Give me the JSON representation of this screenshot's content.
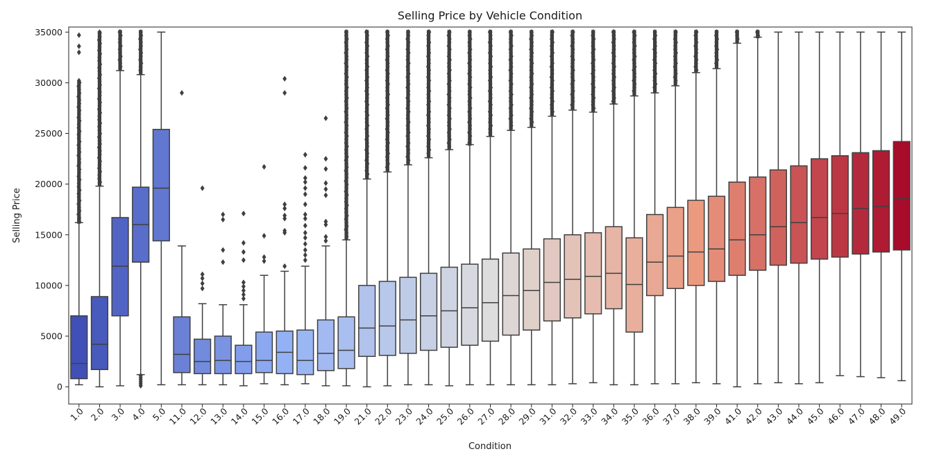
{
  "chart_data": {
    "type": "box",
    "title": "Selling Price by Vehicle Condition",
    "xlabel": "Condition",
    "ylabel": "Selling Price",
    "ylim": [
      -1700,
      35500
    ],
    "yticks": [
      0,
      5000,
      10000,
      15000,
      20000,
      25000,
      30000,
      35000
    ],
    "palette": "coolwarm",
    "grid": false,
    "legend": "none",
    "categories": [
      "1.0",
      "2.0",
      "3.0",
      "4.0",
      "5.0",
      "11.0",
      "12.0",
      "13.0",
      "14.0",
      "15.0",
      "16.0",
      "17.0",
      "18.0",
      "19.0",
      "21.0",
      "22.0",
      "23.0",
      "24.0",
      "25.0",
      "26.0",
      "27.0",
      "28.0",
      "29.0",
      "31.0",
      "32.0",
      "33.0",
      "34.0",
      "35.0",
      "36.0",
      "37.0",
      "38.0",
      "39.0",
      "41.0",
      "42.0",
      "43.0",
      "44.0",
      "45.0",
      "46.0",
      "47.0",
      "48.0",
      "49.0"
    ],
    "boxes": [
      {
        "category": "1.0",
        "whisker_low": 200,
        "q1": 800,
        "median": 2300,
        "q3": 7000,
        "whisker_high": 16200,
        "fliers_high": [
          16500,
          17500,
          19000,
          20500,
          22000,
          23500,
          25000,
          26500,
          28000,
          30200,
          33000,
          33600,
          34700
        ],
        "fliers_low": [],
        "dense_high": [
          16300,
          30000
        ]
      },
      {
        "category": "2.0",
        "whisker_low": 0,
        "q1": 1700,
        "median": 4200,
        "q3": 8900,
        "whisker_high": 19800,
        "fliers_high": [
          35000
        ],
        "fliers_low": [],
        "dense_high": [
          20000,
          34900
        ]
      },
      {
        "category": "3.0",
        "whisker_low": 100,
        "q1": 7000,
        "median": 11900,
        "q3": 16700,
        "whisker_high": 31200,
        "fliers_high": [
          35000
        ],
        "fliers_low": [],
        "dense_high": [
          31400,
          35000
        ]
      },
      {
        "category": "4.0",
        "whisker_low": 1200,
        "q1": 12300,
        "median": 16000,
        "q3": 19700,
        "whisker_high": 30800,
        "fliers_high": [
          35000
        ],
        "fliers_low": [
          100,
          300,
          500,
          700,
          900,
          1100
        ],
        "dense_high": [
          31000,
          35000
        ]
      },
      {
        "category": "5.0",
        "whisker_low": 200,
        "q1": 14400,
        "median": 19600,
        "q3": 25400,
        "whisker_high": 35000,
        "fliers_high": [],
        "fliers_low": [],
        "dense_high": []
      },
      {
        "category": "11.0",
        "whisker_low": 200,
        "q1": 1400,
        "median": 3200,
        "q3": 6900,
        "whisker_high": 13900,
        "fliers_high": [
          29000
        ],
        "fliers_low": [],
        "dense_high": []
      },
      {
        "category": "12.0",
        "whisker_low": 200,
        "q1": 1300,
        "median": 2500,
        "q3": 4700,
        "whisker_high": 8200,
        "fliers_high": [
          9700,
          10200,
          10700,
          11100,
          19600
        ],
        "fliers_low": [],
        "dense_high": []
      },
      {
        "category": "13.0",
        "whisker_low": 200,
        "q1": 1300,
        "median": 2600,
        "q3": 5000,
        "whisker_high": 8100,
        "fliers_high": [
          12300,
          13500,
          16500,
          17000
        ],
        "fliers_low": [],
        "dense_high": []
      },
      {
        "category": "14.0",
        "whisker_low": 100,
        "q1": 1300,
        "median": 2500,
        "q3": 4100,
        "whisker_high": 8100,
        "fliers_high": [
          8700,
          9100,
          9500,
          9900,
          10300,
          12500,
          13300,
          14200,
          17100
        ],
        "fliers_low": [],
        "dense_high": []
      },
      {
        "category": "15.0",
        "whisker_low": 300,
        "q1": 1400,
        "median": 2600,
        "q3": 5400,
        "whisker_high": 11000,
        "fliers_high": [
          12400,
          12800,
          14900,
          21700
        ],
        "fliers_low": [],
        "dense_high": []
      },
      {
        "category": "16.0",
        "whisker_low": 200,
        "q1": 1300,
        "median": 3400,
        "q3": 5500,
        "whisker_high": 11400,
        "fliers_high": [
          11900,
          15200,
          15400,
          16600,
          16900,
          17600,
          18000,
          29000,
          30400
        ],
        "fliers_low": [],
        "dense_high": []
      },
      {
        "category": "17.0",
        "whisker_low": 300,
        "q1": 1200,
        "median": 2600,
        "q3": 5600,
        "whisker_high": 11900,
        "fliers_high": [
          12500,
          13000,
          13500,
          14100,
          14700,
          15200,
          15900,
          16600,
          17000,
          18000,
          19000,
          19600,
          20200,
          20600,
          21600,
          22900
        ],
        "fliers_low": [],
        "dense_high": []
      },
      {
        "category": "18.0",
        "whisker_low": 100,
        "q1": 1600,
        "median": 3300,
        "q3": 6600,
        "whisker_high": 13900,
        "fliers_high": [
          14400,
          14800,
          16000,
          16300,
          18900,
          19500,
          20100,
          21500,
          22500,
          26500
        ],
        "fliers_low": [],
        "dense_high": []
      },
      {
        "category": "19.0",
        "whisker_low": 100,
        "q1": 1800,
        "median": 3600,
        "q3": 6900,
        "whisker_high": 14500,
        "fliers_high": [
          35000
        ],
        "fliers_low": [],
        "dense_high": [
          14700,
          35000
        ]
      },
      {
        "category": "21.0",
        "whisker_low": 0,
        "q1": 3000,
        "median": 5800,
        "q3": 10000,
        "whisker_high": 20500,
        "fliers_high": [
          35000
        ],
        "fliers_low": [],
        "dense_high": [
          20700,
          35000
        ]
      },
      {
        "category": "22.0",
        "whisker_low": 100,
        "q1": 3100,
        "median": 6000,
        "q3": 10400,
        "whisker_high": 21200,
        "fliers_high": [
          35000
        ],
        "fliers_low": [],
        "dense_high": [
          21400,
          35000
        ]
      },
      {
        "category": "23.0",
        "whisker_low": 200,
        "q1": 3300,
        "median": 6600,
        "q3": 10800,
        "whisker_high": 21900,
        "fliers_high": [
          35000
        ],
        "fliers_low": [],
        "dense_high": [
          22100,
          35000
        ]
      },
      {
        "category": "24.0",
        "whisker_low": 200,
        "q1": 3600,
        "median": 7000,
        "q3": 11200,
        "whisker_high": 22600,
        "fliers_high": [
          35000
        ],
        "fliers_low": [],
        "dense_high": [
          22800,
          35000
        ]
      },
      {
        "category": "25.0",
        "whisker_low": 100,
        "q1": 3900,
        "median": 7500,
        "q3": 11800,
        "whisker_high": 23400,
        "fliers_high": [
          35000
        ],
        "fliers_low": [],
        "dense_high": [
          23600,
          35000
        ]
      },
      {
        "category": "26.0",
        "whisker_low": 200,
        "q1": 4100,
        "median": 7800,
        "q3": 12100,
        "whisker_high": 23900,
        "fliers_high": [
          35000
        ],
        "fliers_low": [],
        "dense_high": [
          24000,
          35000
        ]
      },
      {
        "category": "27.0",
        "whisker_low": 200,
        "q1": 4500,
        "median": 8300,
        "q3": 12600,
        "whisker_high": 24700,
        "fliers_high": [
          35000
        ],
        "fliers_low": [],
        "dense_high": [
          24900,
          35000
        ]
      },
      {
        "category": "28.0",
        "whisker_low": 200,
        "q1": 5100,
        "median": 9000,
        "q3": 13200,
        "whisker_high": 25300,
        "fliers_high": [
          35000
        ],
        "fliers_low": [],
        "dense_high": [
          25500,
          35000
        ]
      },
      {
        "category": "29.0",
        "whisker_low": 200,
        "q1": 5600,
        "median": 9500,
        "q3": 13600,
        "whisker_high": 25600,
        "fliers_high": [
          35000
        ],
        "fliers_low": [],
        "dense_high": [
          25800,
          35000
        ]
      },
      {
        "category": "31.0",
        "whisker_low": 200,
        "q1": 6500,
        "median": 10300,
        "q3": 14600,
        "whisker_high": 26700,
        "fliers_high": [
          35000
        ],
        "fliers_low": [],
        "dense_high": [
          26900,
          35000
        ]
      },
      {
        "category": "32.0",
        "whisker_low": 300,
        "q1": 6800,
        "median": 10600,
        "q3": 15000,
        "whisker_high": 27300,
        "fliers_high": [
          35000
        ],
        "fliers_low": [],
        "dense_high": [
          27500,
          35000
        ]
      },
      {
        "category": "33.0",
        "whisker_low": 400,
        "q1": 7200,
        "median": 10900,
        "q3": 15200,
        "whisker_high": 27100,
        "fliers_high": [
          35000
        ],
        "fliers_low": [],
        "dense_high": [
          27300,
          35000
        ]
      },
      {
        "category": "34.0",
        "whisker_low": 200,
        "q1": 7700,
        "median": 11200,
        "q3": 15800,
        "whisker_high": 27900,
        "fliers_high": [
          35000
        ],
        "fliers_low": [],
        "dense_high": [
          28100,
          35000
        ]
      },
      {
        "category": "35.0",
        "whisker_low": 200,
        "q1": 5400,
        "median": 10100,
        "q3": 14700,
        "whisker_high": 28700,
        "fliers_high": [
          35000
        ],
        "fliers_low": [],
        "dense_high": [
          28900,
          35000
        ]
      },
      {
        "category": "36.0",
        "whisker_low": 300,
        "q1": 9000,
        "median": 12300,
        "q3": 17000,
        "whisker_high": 29000,
        "fliers_high": [
          35000
        ],
        "fliers_low": [],
        "dense_high": [
          29200,
          35000
        ]
      },
      {
        "category": "37.0",
        "whisker_low": 300,
        "q1": 9700,
        "median": 12900,
        "q3": 17700,
        "whisker_high": 29700,
        "fliers_high": [
          35000
        ],
        "fliers_low": [],
        "dense_high": [
          29900,
          35000
        ]
      },
      {
        "category": "38.0",
        "whisker_low": 400,
        "q1": 10000,
        "median": 13300,
        "q3": 18400,
        "whisker_high": 31000,
        "fliers_high": [
          35000
        ],
        "fliers_low": [],
        "dense_high": [
          31200,
          35000
        ]
      },
      {
        "category": "39.0",
        "whisker_low": 300,
        "q1": 10400,
        "median": 13600,
        "q3": 18800,
        "whisker_high": 31400,
        "fliers_high": [
          35000
        ],
        "fliers_low": [],
        "dense_high": [
          31600,
          35000
        ]
      },
      {
        "category": "41.0",
        "whisker_low": 0,
        "q1": 11000,
        "median": 14500,
        "q3": 20200,
        "whisker_high": 33900,
        "fliers_high": [
          35000
        ],
        "fliers_low": [],
        "dense_high": [
          34100,
          35000
        ]
      },
      {
        "category": "42.0",
        "whisker_low": 300,
        "q1": 11500,
        "median": 15000,
        "q3": 20700,
        "whisker_high": 34500,
        "fliers_high": [
          35000
        ],
        "fliers_low": [],
        "dense_high": [
          34600,
          35000
        ]
      },
      {
        "category": "43.0",
        "whisker_low": 400,
        "q1": 12000,
        "median": 15800,
        "q3": 21400,
        "whisker_high": 35000,
        "fliers_high": [],
        "fliers_low": [],
        "dense_high": []
      },
      {
        "category": "44.0",
        "whisker_low": 300,
        "q1": 12200,
        "median": 16200,
        "q3": 21800,
        "whisker_high": 35000,
        "fliers_high": [],
        "fliers_low": [],
        "dense_high": []
      },
      {
        "category": "45.0",
        "whisker_low": 400,
        "q1": 12600,
        "median": 16700,
        "q3": 22500,
        "whisker_high": 35000,
        "fliers_high": [],
        "fliers_low": [],
        "dense_high": []
      },
      {
        "category": "46.0",
        "whisker_low": 1100,
        "q1": 12800,
        "median": 17100,
        "q3": 22800,
        "whisker_high": 35000,
        "fliers_high": [],
        "fliers_low": [],
        "dense_high": []
      },
      {
        "category": "47.0",
        "whisker_low": 1000,
        "q1": 13100,
        "median": 17600,
        "q3": 23100,
        "whisker_high": 35000,
        "fliers_high": [],
        "fliers_low": [],
        "dense_high": []
      },
      {
        "category": "48.0",
        "whisker_low": 900,
        "q1": 13300,
        "median": 17800,
        "q3": 23300,
        "whisker_high": 35000,
        "fliers_high": [],
        "fliers_low": [],
        "dense_high": []
      },
      {
        "category": "49.0",
        "whisker_low": 600,
        "q1": 13500,
        "median": 18600,
        "q3": 24200,
        "whisker_high": 35000,
        "fliers_high": [],
        "fliers_low": [],
        "dense_high": []
      }
    ]
  }
}
